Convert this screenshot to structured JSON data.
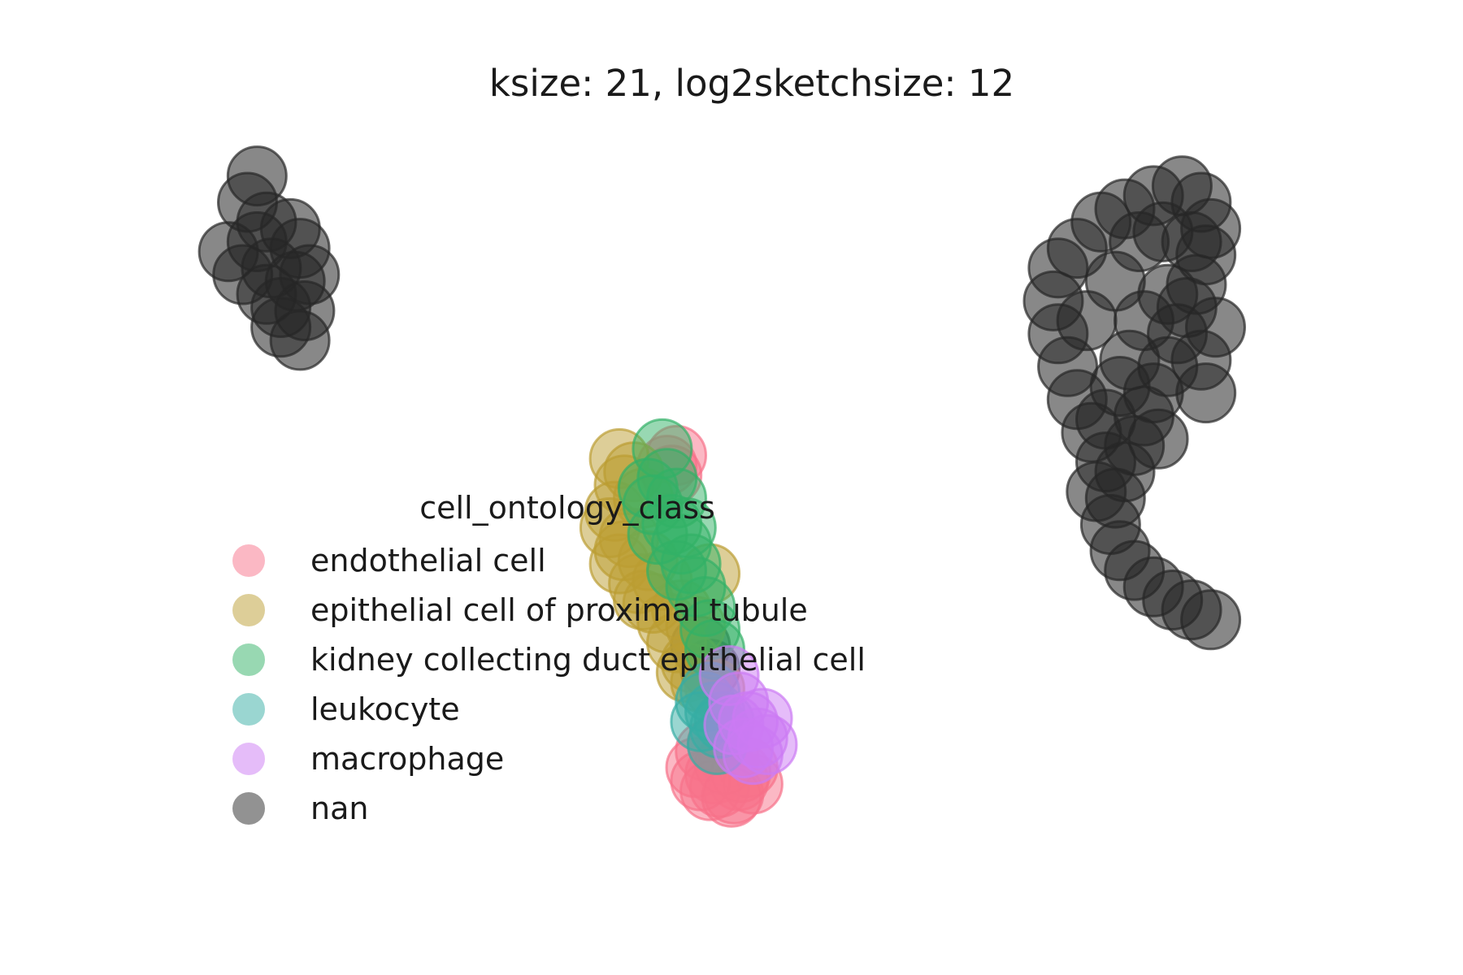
{
  "chart_data": {
    "type": "scatter",
    "title": "ksize: 21, log2sketchsize: 12",
    "xlabel": "",
    "ylabel": "",
    "axes_visible": false,
    "grid": false,
    "legend": {
      "title": "cell_ontology_class",
      "placement": "center-left"
    },
    "series": [
      {
        "name": "endothelial cell",
        "color": "#f77189",
        "points": [
          [
            8.2,
            3.1
          ],
          [
            8.0,
            2.6
          ],
          [
            8.4,
            2.4
          ],
          [
            8.7,
            2.9
          ],
          [
            8.9,
            2.2
          ],
          [
            8.5,
            2.0
          ],
          [
            9.1,
            2.6
          ],
          [
            8.3,
            1.9
          ],
          [
            8.8,
            1.8
          ],
          [
            9.2,
            2.1
          ],
          [
            8.6,
            2.7
          ],
          [
            8.1,
            2.2
          ],
          [
            8.95,
            2.45
          ],
          [
            8.45,
            3.35
          ],
          [
            7.4,
            11.8
          ],
          [
            7.6,
            12.1
          ],
          [
            7.5,
            11.5
          ],
          [
            8.75,
            1.7
          ]
        ]
      },
      {
        "name": "epithelial cell of proximal tubule",
        "color": "#bb9d32",
        "points": [
          [
            6.4,
            12.0
          ],
          [
            6.5,
            11.2
          ],
          [
            6.3,
            10.4
          ],
          [
            6.6,
            9.6
          ],
          [
            6.4,
            8.8
          ],
          [
            6.8,
            8.2
          ],
          [
            7.1,
            7.6
          ],
          [
            7.4,
            7.0
          ],
          [
            7.6,
            6.4
          ],
          [
            7.9,
            5.8
          ],
          [
            8.1,
            5.2
          ],
          [
            6.7,
            11.6
          ],
          [
            6.9,
            10.8
          ],
          [
            6.5,
            9.2
          ],
          [
            7.0,
            8.9
          ],
          [
            7.3,
            8.3
          ],
          [
            7.7,
            7.4
          ],
          [
            6.2,
            9.9
          ],
          [
            6.9,
            7.7
          ],
          [
            8.0,
            6.9
          ],
          [
            8.3,
            8.5
          ],
          [
            7.8,
            5.5
          ],
          [
            8.4,
            5.0
          ]
        ]
      },
      {
        "name": "kidney collecting duct epithelial cell",
        "color": "#32b166",
        "points": [
          [
            7.3,
            12.3
          ],
          [
            7.4,
            11.4
          ],
          [
            7.6,
            10.8
          ],
          [
            7.5,
            10.0
          ],
          [
            7.7,
            9.4
          ],
          [
            7.9,
            8.8
          ],
          [
            8.0,
            8.1
          ],
          [
            7.2,
            9.7
          ],
          [
            7.1,
            10.6
          ],
          [
            7.8,
            9.9
          ],
          [
            8.2,
            7.5
          ],
          [
            8.3,
            6.8
          ],
          [
            8.4,
            6.2
          ],
          [
            7.0,
            11.1
          ],
          [
            7.6,
            8.6
          ]
        ]
      },
      {
        "name": "leukocyte",
        "color": "#36ada4",
        "points": [
          [
            8.3,
            4.9
          ],
          [
            8.4,
            4.3
          ],
          [
            8.5,
            3.8
          ],
          [
            8.2,
            4.6
          ],
          [
            8.6,
            4.0
          ],
          [
            8.1,
            4.0
          ],
          [
            8.45,
            3.3
          ]
        ]
      },
      {
        "name": "macrophage",
        "color": "#cc7af4",
        "points": [
          [
            8.9,
            4.6
          ],
          [
            9.1,
            4.0
          ],
          [
            9.3,
            3.5
          ],
          [
            9.0,
            3.2
          ],
          [
            8.8,
            3.9
          ],
          [
            9.4,
            4.1
          ],
          [
            9.2,
            3.0
          ],
          [
            8.7,
            5.4
          ],
          [
            9.5,
            3.3
          ]
        ]
      },
      {
        "name": "nan",
        "color": "#262626",
        "points": [
          [
            -1.2,
            20.6
          ],
          [
            -1.4,
            19.8
          ],
          [
            -1.0,
            19.2
          ],
          [
            -0.5,
            19.0
          ],
          [
            -0.3,
            18.4
          ],
          [
            -1.8,
            18.3
          ],
          [
            -1.5,
            17.6
          ],
          [
            -0.9,
            17.8
          ],
          [
            -0.4,
            17.4
          ],
          [
            -1.0,
            17.0
          ],
          [
            -0.7,
            16.6
          ],
          [
            -0.2,
            16.5
          ],
          [
            -0.3,
            15.6
          ],
          [
            -0.7,
            16.0
          ],
          [
            -0.1,
            17.6
          ],
          [
            -1.2,
            18.6
          ],
          [
            16.0,
            18.4
          ],
          [
            16.5,
            19.2
          ],
          [
            17.0,
            19.6
          ],
          [
            17.6,
            20.0
          ],
          [
            18.2,
            20.3
          ],
          [
            18.6,
            19.8
          ],
          [
            18.8,
            19.0
          ],
          [
            18.7,
            18.2
          ],
          [
            18.5,
            17.3
          ],
          [
            18.3,
            16.6
          ],
          [
            18.1,
            15.8
          ],
          [
            17.9,
            14.8
          ],
          [
            17.6,
            14.0
          ],
          [
            17.4,
            13.3
          ],
          [
            17.2,
            12.4
          ],
          [
            17.0,
            11.6
          ],
          [
            16.8,
            10.8
          ],
          [
            16.7,
            10.0
          ],
          [
            16.9,
            9.2
          ],
          [
            17.2,
            8.6
          ],
          [
            17.6,
            8.1
          ],
          [
            18.0,
            7.7
          ],
          [
            18.4,
            7.4
          ],
          [
            18.8,
            7.1
          ],
          [
            15.6,
            17.8
          ],
          [
            15.5,
            16.8
          ],
          [
            15.6,
            15.8
          ],
          [
            15.8,
            14.8
          ],
          [
            16.0,
            13.8
          ],
          [
            16.3,
            12.8
          ],
          [
            16.6,
            11.9
          ],
          [
            16.2,
            16.2
          ],
          [
            16.8,
            17.4
          ],
          [
            17.3,
            18.6
          ],
          [
            17.8,
            18.9
          ],
          [
            17.4,
            16.2
          ],
          [
            17.1,
            15.0
          ],
          [
            16.9,
            14.2
          ],
          [
            16.6,
            13.2
          ],
          [
            17.9,
            17.0
          ],
          [
            18.4,
            18.6
          ],
          [
            17.7,
            12.6
          ],
          [
            16.4,
            11.0
          ],
          [
            18.6,
            15.0
          ],
          [
            18.9,
            16.0
          ],
          [
            18.7,
            14.0
          ],
          [
            8.1,
            6.3
          ],
          [
            8.3,
            5.6
          ]
        ]
      }
    ]
  }
}
